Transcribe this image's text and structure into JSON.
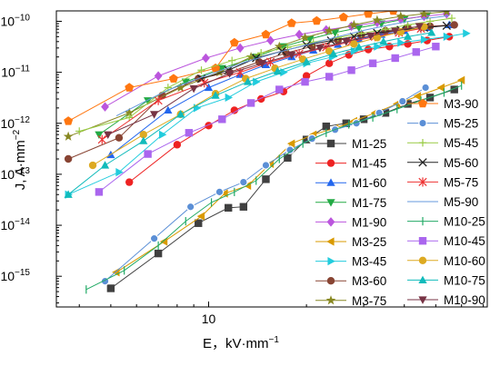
{
  "chart_data": {
    "type": "scatter",
    "xlabel": "E，kV·mm",
    "xlabel_sup": "−1",
    "ylabel": "J, A·mm",
    "ylabel_sup": "−2",
    "x_scale": "log",
    "y_scale": "log",
    "xlim": [
      3.4,
      72
    ],
    "ylim": [
      2.5e-16,
      1.6e-10
    ],
    "x_ticks": [
      {
        "value": 10,
        "label": "10"
      }
    ],
    "y_ticks": [
      {
        "value": 1e-15,
        "base": "10",
        "exp": "−15"
      },
      {
        "value": 1e-14,
        "base": "10",
        "exp": "−14"
      },
      {
        "value": 1e-13,
        "base": "10",
        "exp": "−13"
      },
      {
        "value": 1e-12,
        "base": "10",
        "exp": "−12"
      },
      {
        "value": 1e-11,
        "base": "10",
        "exp": "−11"
      },
      {
        "value": 1e-10,
        "base": "10",
        "exp": "−10"
      }
    ],
    "legend_position": "right",
    "series": [
      {
        "name": "M1-25",
        "color": "#404040",
        "marker": "square",
        "x": [
          5.0,
          7.0,
          9.3,
          11.5,
          12.8,
          15.0,
          17.5,
          20.0,
          23.0,
          26.5,
          30.0,
          35.0,
          41.0,
          48.0,
          57.0
        ],
        "y": [
          5.8e-16,
          2.8e-15,
          1.1e-14,
          2.2e-14,
          2.3e-14,
          8e-14,
          2.1e-13,
          4.8e-13,
          8.7e-13,
          1e-12,
          1.2e-12,
          1.6e-12,
          2.4e-12,
          3.2e-12,
          4.6e-12
        ]
      },
      {
        "name": "M1-45",
        "color": "#ee2222",
        "marker": "circle",
        "x": [
          5.7,
          8.0,
          10.0,
          12.0,
          14.5,
          17.0,
          20.0,
          23.5,
          27.0,
          31.0,
          36.0,
          41.0,
          47.0,
          55.0
        ],
        "y": [
          7e-14,
          3.8e-13,
          9e-13,
          1.8e-12,
          3e-12,
          4.2e-12,
          8.5e-12,
          1.5e-11,
          2.2e-11,
          2.8e-11,
          3.2e-11,
          3.6e-11,
          4.2e-11,
          5e-11
        ]
      },
      {
        "name": "M1-60",
        "color": "#2266ee",
        "marker": "triangle-up",
        "x": [
          5.0,
          7.5,
          10.0,
          12.5,
          15.0,
          18.0,
          21.0,
          25.0,
          29.0,
          34.0,
          40.0,
          47.0,
          55.0
        ],
        "y": [
          2.4e-13,
          1.8e-12,
          5e-12,
          9e-12,
          1.4e-11,
          2e-11,
          2.7e-11,
          3.5e-11,
          4.5e-11,
          5.5e-11,
          6.5e-11,
          7.5e-11,
          8.5e-11
        ]
      },
      {
        "name": "M1-75",
        "color": "#22aa44",
        "marker": "triangle-down",
        "x": [
          4.6,
          6.5,
          8.5,
          11.0,
          14.0,
          17.0,
          20.5,
          24.5,
          29.0,
          34.0,
          40.0,
          47.0
        ],
        "y": [
          6e-13,
          2.8e-12,
          6.5e-12,
          1.2e-11,
          2e-11,
          3.2e-11,
          4.5e-11,
          6e-11,
          7.5e-11,
          9e-11,
          1.1e-10,
          1.3e-10
        ]
      },
      {
        "name": "M1-90",
        "color": "#bb55dd",
        "marker": "diamond",
        "x": [
          4.8,
          7.0,
          9.8,
          12.5,
          15.5,
          19.0,
          23.0,
          27.5,
          33.0,
          39.0,
          46.0,
          54.0
        ],
        "y": [
          2.1e-12,
          8.5e-12,
          1.9e-11,
          3e-11,
          4.2e-11,
          5.5e-11,
          6.8e-11,
          8e-11,
          9.5e-11,
          1.1e-10,
          1.25e-10,
          1.4e-10
        ]
      },
      {
        "name": "M3-25",
        "color": "#d99a00",
        "marker": "triangle-left",
        "x": [
          5.2,
          7.3,
          9.5,
          11.2,
          13.2,
          15.5,
          18.0,
          21.0,
          24.5,
          28.0,
          32.5,
          38.0,
          44.0,
          52.0,
          60.0
        ],
        "y": [
          1.2e-15,
          4.8e-15,
          1.5e-14,
          4.2e-14,
          6e-14,
          1.6e-13,
          4e-13,
          6e-13,
          8e-13,
          1.1e-12,
          1.6e-12,
          2.4e-12,
          3.4e-12,
          5e-12,
          7e-12
        ]
      },
      {
        "name": "M3-45",
        "color": "#22ccdd",
        "marker": "triangle-right",
        "x": [
          3.7,
          5.3,
          7.2,
          9.2,
          11.5,
          14.0,
          17.0,
          20.0,
          24.0,
          28.0,
          33.0,
          39.0,
          46.0,
          54.0,
          62.0
        ],
        "y": [
          4e-14,
          1.1e-13,
          6e-13,
          2e-12,
          3.2e-12,
          6.5e-12,
          1e-11,
          1.5e-11,
          2e-11,
          2.6e-11,
          3.2e-11,
          3.8e-11,
          4.4e-11,
          5e-11,
          5.8e-11
        ]
      },
      {
        "name": "M3-60",
        "color": "#884433",
        "marker": "circle",
        "x": [
          3.7,
          5.3,
          7.2,
          9.3,
          11.6,
          14.3,
          17.3,
          20.8,
          25.0,
          29.5,
          35.0,
          41.0,
          48.0,
          57.0
        ],
        "y": [
          2e-13,
          5.2e-13,
          3.5e-12,
          7.5e-12,
          1e-11,
          1.6e-11,
          2.4e-11,
          3.2e-11,
          4.2e-11,
          5.4e-11,
          6.5e-11,
          7.5e-11,
          8e-11,
          8.5e-11
        ]
      },
      {
        "name": "M3-75",
        "color": "#888822",
        "marker": "star",
        "x": [
          3.7,
          5.7,
          8.2,
          10.8,
          13.5,
          16.5,
          19.8,
          23.5,
          28.0,
          33.0,
          39.0,
          46.0,
          54.0
        ],
        "y": [
          5.5e-13,
          1.6e-12,
          5e-12,
          1e-11,
          2e-11,
          3.2e-11,
          4.8e-11,
          6.5e-11,
          8.5e-11,
          1.05e-10,
          1.25e-10,
          1.4e-10,
          1.55e-10
        ]
      },
      {
        "name": "M3-90",
        "color": "#ff7711",
        "marker": "pentagon",
        "x": [
          3.7,
          5.7,
          7.8,
          10.5,
          12.0,
          15.0,
          18.0,
          21.5,
          26.0,
          31.0,
          37.0
        ],
        "y": [
          1.1e-12,
          5e-12,
          7.5e-12,
          1.2e-11,
          3.8e-11,
          5.5e-11,
          9.2e-11,
          1.02e-10,
          1.2e-10,
          1.4e-10,
          1.6e-10
        ]
      },
      {
        "name": "M5-25",
        "color": "#5b8fd6",
        "marker": "sphere",
        "x": [
          4.8,
          6.8,
          8.8,
          10.8,
          12.8,
          15.0,
          17.8,
          20.8,
          24.5,
          28.5,
          33.5,
          39.5,
          46.5
        ],
        "y": [
          8e-16,
          5.5e-15,
          2.3e-14,
          4.5e-14,
          7e-14,
          1.5e-13,
          3e-13,
          5e-13,
          7.5e-13,
          1e-12,
          1.6e-12,
          2.7e-12,
          5e-12
        ]
      },
      {
        "name": "M5-45",
        "color": "#99cc44",
        "marker": "plus",
        "x": [
          4.0,
          5.7,
          7.5,
          9.5,
          11.8,
          14.5,
          17.5,
          21.0,
          25.0,
          29.5,
          35.0,
          41.0,
          48.0,
          56.0
        ],
        "y": [
          7e-13,
          1.3e-12,
          5e-12,
          1.1e-11,
          1.7e-11,
          2.4e-11,
          3.1e-11,
          3.9e-11,
          4.8e-11,
          5.8e-11,
          7e-11,
          8.5e-11,
          1e-10,
          1.15e-10
        ]
      },
      {
        "name": "M5-60",
        "color": "#222222",
        "marker": "cross",
        "x": [
          9.5,
          11.5,
          14.0,
          16.8,
          20.0,
          23.8,
          28.0,
          33.0,
          39.0,
          46.0,
          54.0
        ],
        "y": [
          7.5e-12,
          1.1e-11,
          1.9e-11,
          2.6e-11,
          3.4e-11,
          4.2e-11,
          5e-11,
          5.9e-11,
          6.8e-11,
          7.5e-11,
          8.2e-11
        ]
      },
      {
        "name": "M5-75",
        "color": "#ee3333",
        "marker": "asterisk",
        "x": [
          4.7,
          7.0,
          9.7,
          12.5,
          15.5,
          19.0,
          23.0,
          27.5,
          32.5,
          38.5,
          45.0
        ],
        "y": [
          4.8e-13,
          2.8e-12,
          6.2e-12,
          1e-11,
          1.6e-11,
          2.3e-11,
          3.1e-11,
          4e-11,
          5e-11,
          6e-11,
          7.2e-11
        ]
      },
      {
        "name": "M5-90",
        "color": "#6699dd",
        "marker": "none",
        "x": [
          5.2,
          7.5,
          10.0,
          13.0,
          16.5,
          20.5,
          25.0,
          30.5,
          37.0,
          45.0,
          55.0
        ],
        "y": [
          1.4e-12,
          4.5e-12,
          9e-12,
          1.6e-11,
          2.5e-11,
          3.6e-11,
          5e-11,
          6.8e-11,
          8.8e-11,
          1.1e-10,
          1.3e-10
        ]
      },
      {
        "name": "M10-25",
        "color": "#22aa66",
        "marker": "vline",
        "x": [
          4.2,
          5.5,
          7.0,
          8.5,
          10.2,
          12.0,
          14.0,
          16.5,
          19.5,
          23.0,
          27.0,
          32.0,
          38.0,
          45.0,
          53.0,
          60.0
        ],
        "y": [
          5.5e-16,
          1.3e-15,
          4e-15,
          1.2e-14,
          2.8e-14,
          4.5e-14,
          7.5e-14,
          2e-13,
          4e-13,
          6.5e-13,
          9.5e-13,
          1.3e-12,
          1.9e-12,
          2.8e-12,
          4e-12,
          5.5e-12
        ]
      },
      {
        "name": "M10-45",
        "color": "#aa66ee",
        "marker": "square",
        "x": [
          4.6,
          6.5,
          8.7,
          11.0,
          13.5,
          16.5,
          19.8,
          23.5,
          27.5,
          32.0,
          37.5,
          43.5,
          50.0
        ],
        "y": [
          4.5e-14,
          2.5e-13,
          6.5e-13,
          1.2e-12,
          2.5e-12,
          4.6e-12,
          6.5e-12,
          8.2e-12,
          1.1e-11,
          1.5e-11,
          1.9e-11,
          2.5e-11,
          3.2e-11
        ]
      },
      {
        "name": "M10-60",
        "color": "#ddaa22",
        "marker": "circle",
        "x": [
          4.4,
          6.3,
          8.2,
          10.5,
          13.0,
          16.0,
          19.5,
          23.5,
          28.0,
          33.0,
          39.0,
          46.0
        ],
        "y": [
          1.5e-13,
          6e-13,
          1.5e-12,
          3.8e-12,
          7.5e-12,
          1.2e-11,
          1.8e-11,
          2.6e-11,
          3.6e-11,
          4.8e-11,
          6.2e-11,
          7.8e-11
        ]
      },
      {
        "name": "M10-75",
        "color": "#11bbbb",
        "marker": "triangle-up",
        "x": [
          3.7,
          4.8,
          6.3,
          8.2,
          10.5,
          13.2,
          16.3,
          20.0,
          24.2,
          29.0,
          34.5,
          41.0,
          48.5
        ],
        "y": [
          4e-14,
          1.5e-13,
          4.5e-13,
          1.5e-12,
          3.5e-12,
          6.5e-12,
          1.05e-11,
          1.6e-11,
          2.3e-11,
          3.1e-11,
          4e-11,
          5e-11,
          6e-11
        ]
      },
      {
        "name": "M10-90",
        "color": "#773344",
        "marker": "triangle-down",
        "x": [
          4.9,
          6.8,
          9.0,
          11.6,
          14.6,
          18.0,
          22.0,
          26.5,
          31.5,
          37.5,
          44.5
        ],
        "y": [
          6e-13,
          1.5e-12,
          4.8e-12,
          9.5e-12,
          1.5e-11,
          2.2e-11,
          3e-11,
          4e-11,
          5.2e-11,
          6.5e-11,
          8e-11
        ]
      }
    ]
  }
}
